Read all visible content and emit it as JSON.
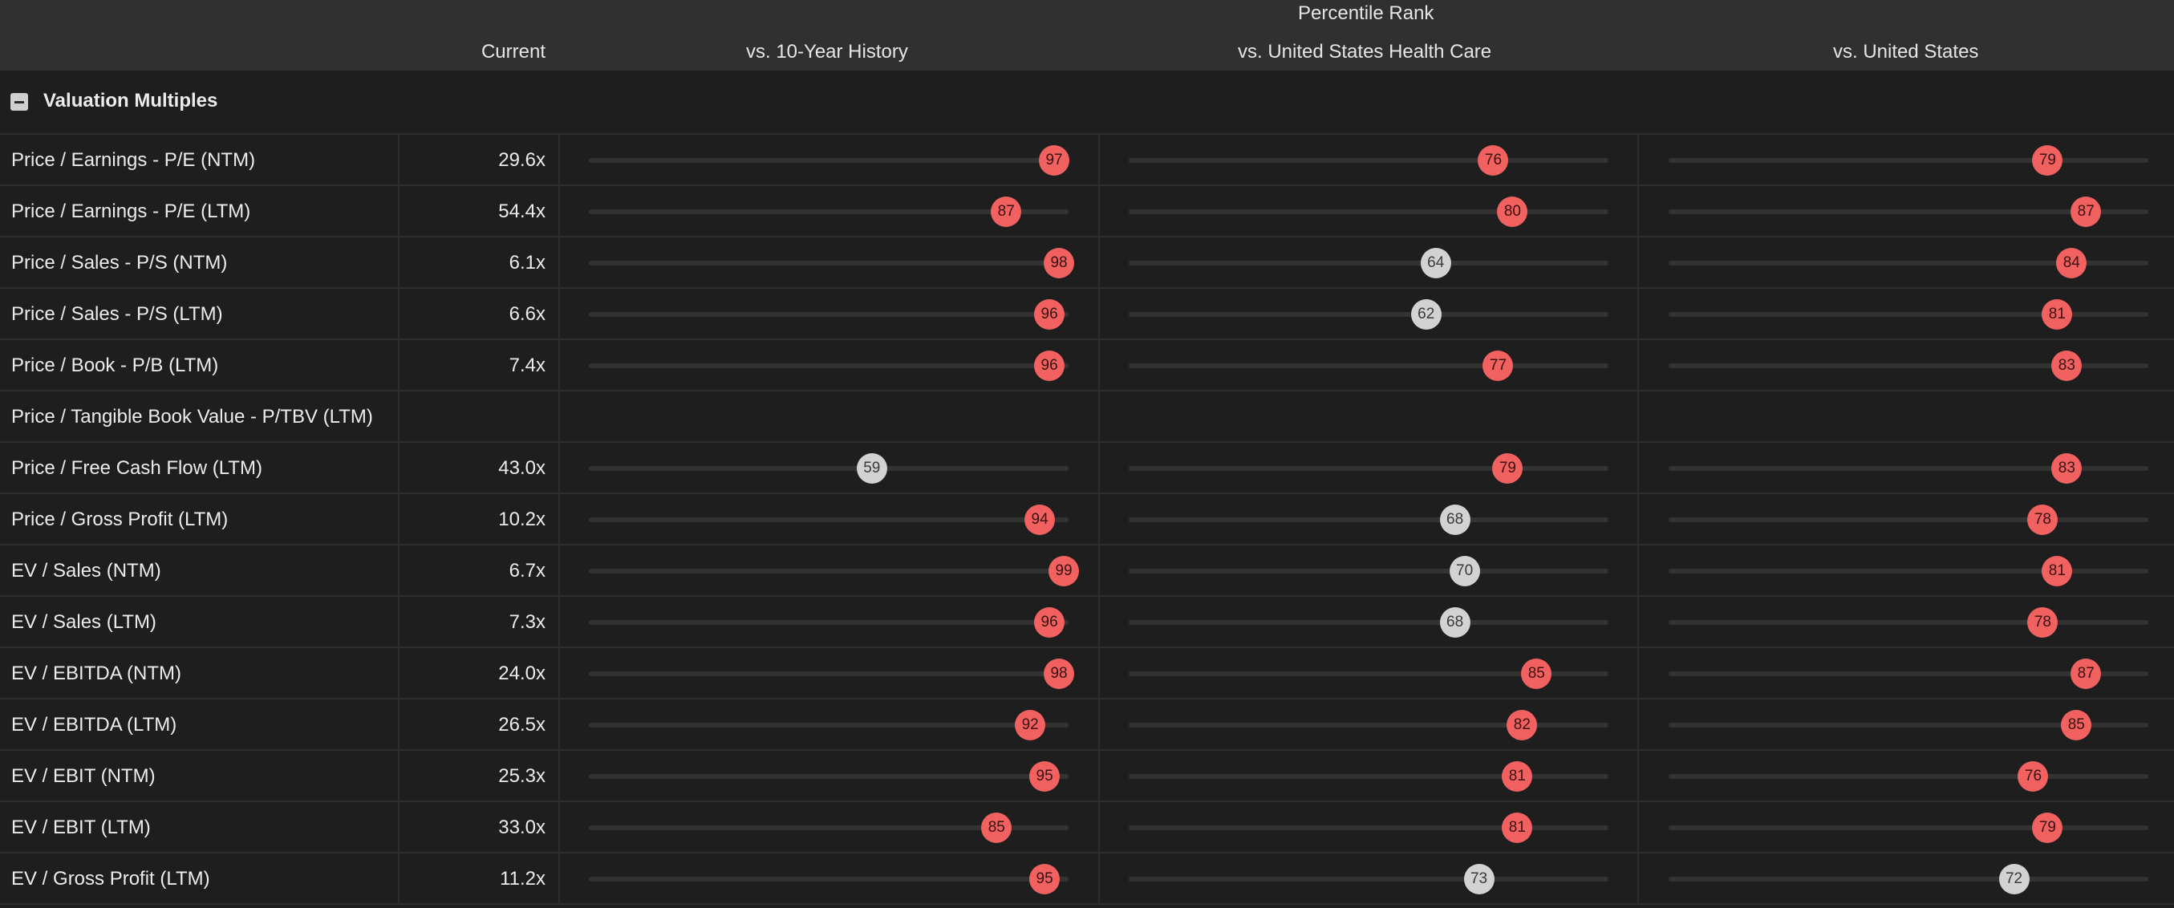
{
  "header": {
    "group_title": "Percentile Rank",
    "col_current": "Current",
    "col_history": "vs. 10-Year History",
    "col_industry": "vs. United States Health Care",
    "col_country": "vs. United States"
  },
  "section": {
    "title": "Valuation Multiples",
    "collapse_icon": "minus-square-icon"
  },
  "colors": {
    "high": "#f0615f",
    "mid": "#d2d2d2",
    "track": "#333333"
  },
  "rows": [
    {
      "label": "Price / Earnings - P/E (NTM)",
      "current": "29.6x",
      "history": 97,
      "industry": 76,
      "country": 79
    },
    {
      "label": "Price / Earnings - P/E (LTM)",
      "current": "54.4x",
      "history": 87,
      "industry": 80,
      "country": 87
    },
    {
      "label": "Price / Sales - P/S (NTM)",
      "current": "6.1x",
      "history": 98,
      "industry": 64,
      "country": 84
    },
    {
      "label": "Price / Sales - P/S (LTM)",
      "current": "6.6x",
      "history": 96,
      "industry": 62,
      "country": 81
    },
    {
      "label": "Price / Book - P/B (LTM)",
      "current": "7.4x",
      "history": 96,
      "industry": 77,
      "country": 83
    },
    {
      "label": "Price / Tangible Book Value - P/TBV (LTM)",
      "current": "",
      "history": null,
      "industry": null,
      "country": null
    },
    {
      "label": "Price / Free Cash Flow (LTM)",
      "current": "43.0x",
      "history": 59,
      "industry": 79,
      "country": 83
    },
    {
      "label": "Price / Gross Profit (LTM)",
      "current": "10.2x",
      "history": 94,
      "industry": 68,
      "country": 78
    },
    {
      "label": "EV / Sales (NTM)",
      "current": "6.7x",
      "history": 99,
      "industry": 70,
      "country": 81
    },
    {
      "label": "EV / Sales (LTM)",
      "current": "7.3x",
      "history": 96,
      "industry": 68,
      "country": 78
    },
    {
      "label": "EV / EBITDA (NTM)",
      "current": "24.0x",
      "history": 98,
      "industry": 85,
      "country": 87
    },
    {
      "label": "EV / EBITDA (LTM)",
      "current": "26.5x",
      "history": 92,
      "industry": 82,
      "country": 85
    },
    {
      "label": "EV / EBIT (NTM)",
      "current": "25.3x",
      "history": 95,
      "industry": 81,
      "country": 76
    },
    {
      "label": "EV / EBIT (LTM)",
      "current": "33.0x",
      "history": 85,
      "industry": 81,
      "country": 79
    },
    {
      "label": "EV / Gross Profit (LTM)",
      "current": "11.2x",
      "history": 95,
      "industry": 73,
      "country": 72
    }
  ]
}
